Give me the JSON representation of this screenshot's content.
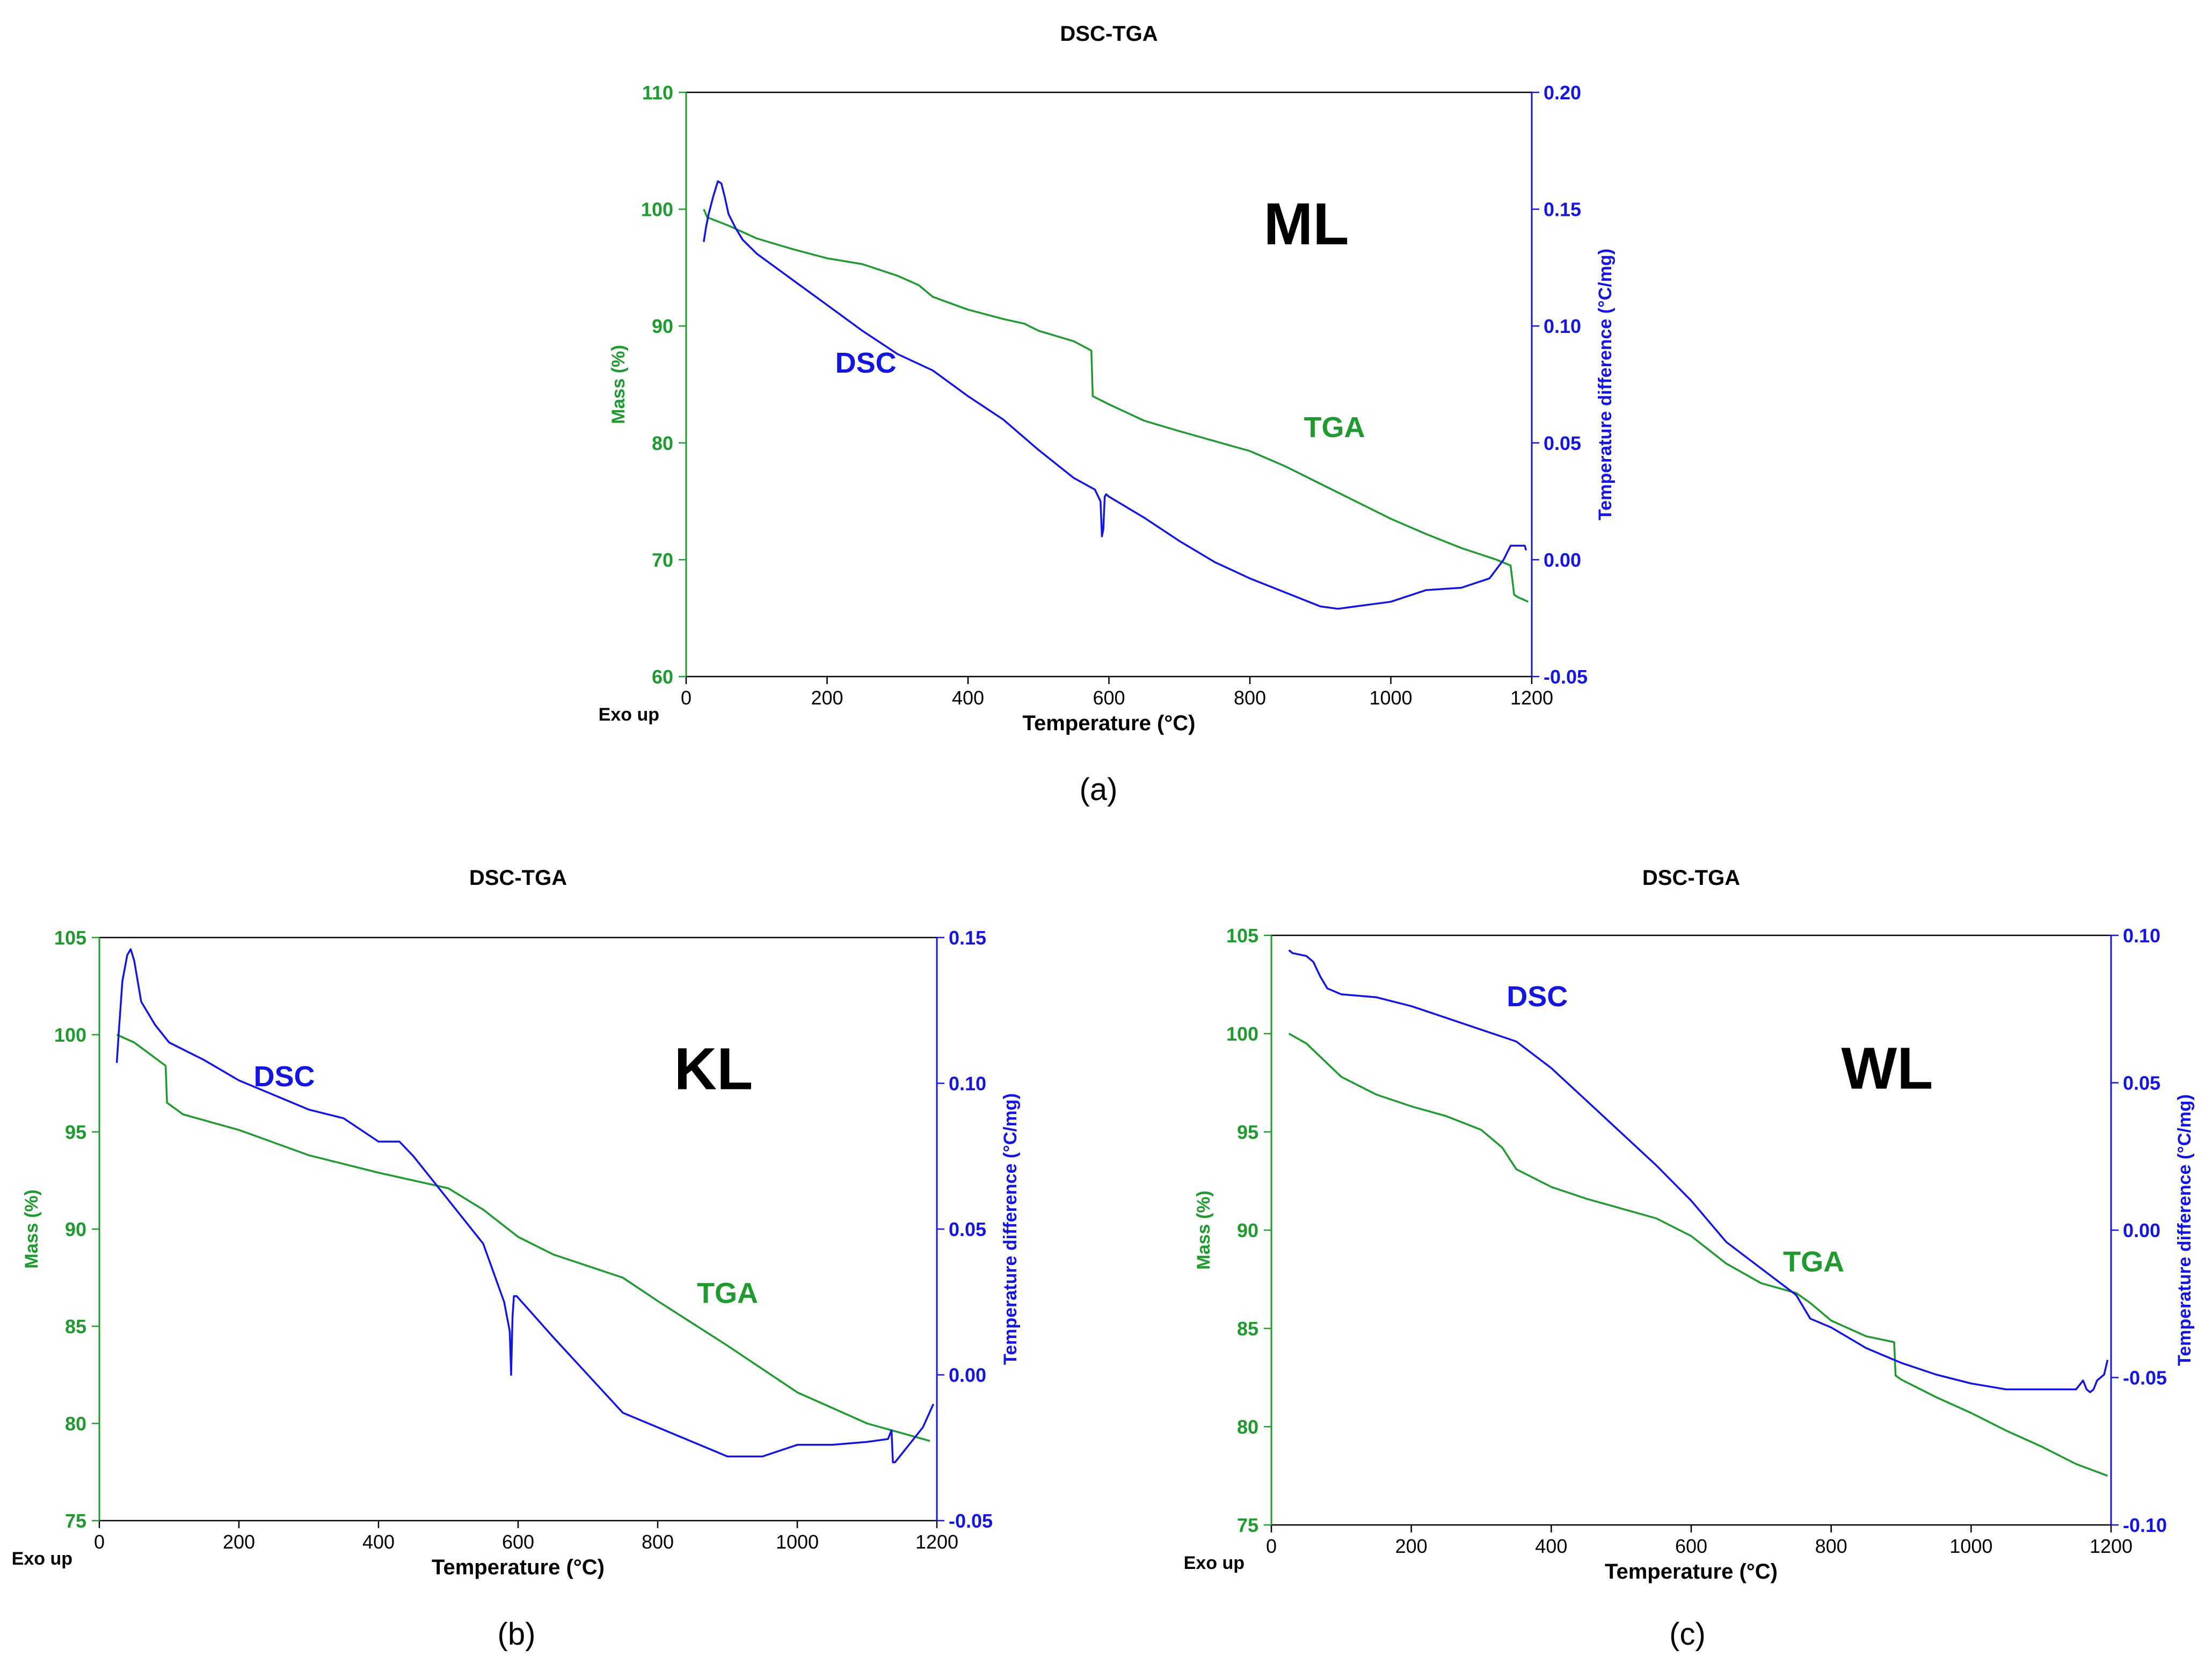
{
  "figure": {
    "caption_a": "(a)",
    "caption_b": "(b)",
    "caption_c": "(c)"
  },
  "colors": {
    "tga": "#1f9a2e",
    "dsc": "#1515e0",
    "axis": "#000000"
  },
  "chart_data": [
    {
      "id": "a",
      "type": "line",
      "title": "DSC-TGA",
      "sample_label": "ML",
      "xlabel": "Temperature (°C)",
      "ylabel_left": "Mass (%)",
      "ylabel_right": "Temperature difference (°C/mg)",
      "corner_label": "Exo up",
      "xlim": [
        0,
        1200
      ],
      "ylim_left": [
        60,
        110
      ],
      "ylim_right": [
        -0.05,
        0.2
      ],
      "x_ticks": [
        "0",
        "200",
        "400",
        "600",
        "800",
        "1000",
        "1200"
      ],
      "left_ticks": [
        "60",
        "70",
        "80",
        "90",
        "100",
        "110"
      ],
      "right_ticks": [
        "-0.05",
        "0.00",
        "0.05",
        "0.10",
        "0.15",
        "0.20"
      ],
      "series": [
        {
          "name": "TGA",
          "axis": "left",
          "label_x": 920,
          "label_y": 80.5,
          "x": [
            25,
            30,
            60,
            100,
            150,
            200,
            250,
            300,
            330,
            350,
            400,
            450,
            480,
            500,
            550,
            575,
            577,
            600,
            650,
            700,
            800,
            850,
            900,
            950,
            1000,
            1050,
            1100,
            1150,
            1170,
            1175,
            1180,
            1195
          ],
          "y": [
            100,
            99.3,
            98.6,
            97.5,
            96.6,
            95.8,
            95.3,
            94.3,
            93.5,
            92.5,
            91.4,
            90.6,
            90.2,
            89.6,
            88.7,
            87.9,
            84.0,
            83.3,
            81.9,
            81.0,
            79.3,
            78.0,
            76.5,
            75.0,
            73.5,
            72.2,
            71.0,
            70.0,
            69.5,
            67.0,
            66.8,
            66.4
          ]
        },
        {
          "name": "DSC",
          "axis": "right",
          "label_x": 255,
          "label_y": 0.08,
          "x": [
            25,
            28,
            32,
            38,
            45,
            50,
            55,
            60,
            70,
            80,
            100,
            150,
            200,
            250,
            300,
            350,
            400,
            450,
            500,
            550,
            580,
            588,
            590,
            592,
            594,
            596,
            600,
            650,
            700,
            750,
            800,
            850,
            900,
            925,
            950,
            1000,
            1050,
            1100,
            1140,
            1160,
            1170,
            1180,
            1190,
            1192
          ],
          "y": [
            0.136,
            0.142,
            0.148,
            0.155,
            0.162,
            0.161,
            0.155,
            0.148,
            0.142,
            0.137,
            0.131,
            0.12,
            0.109,
            0.098,
            0.088,
            0.081,
            0.07,
            0.06,
            0.047,
            0.035,
            0.03,
            0.025,
            0.01,
            0.013,
            0.027,
            0.028,
            0.027,
            0.018,
            0.008,
            -0.001,
            -0.008,
            -0.014,
            -0.02,
            -0.021,
            -0.02,
            -0.018,
            -0.013,
            -0.012,
            -0.008,
            0.0,
            0.006,
            0.006,
            0.006,
            0.004
          ]
        }
      ]
    },
    {
      "id": "b",
      "type": "line",
      "title": "DSC-TGA",
      "sample_label": "KL",
      "xlabel": "Temperature (°C)",
      "ylabel_left": "Mass (%)",
      "ylabel_right": "Temperature difference (°C/mg)",
      "corner_label": "Exo up",
      "xlim": [
        0,
        1200
      ],
      "ylim_left": [
        75,
        105
      ],
      "ylim_right": [
        -0.05,
        0.15
      ],
      "x_ticks": [
        "0",
        "200",
        "400",
        "600",
        "800",
        "1000",
        "1200"
      ],
      "left_ticks": [
        "75",
        "80",
        "85",
        "90",
        "95",
        "100",
        "105"
      ],
      "right_ticks": [
        "-0.05",
        "0.00",
        "0.05",
        "0.10",
        "0.15"
      ],
      "series": [
        {
          "name": "TGA",
          "axis": "left",
          "label_x": 900,
          "label_y": 86.2,
          "x": [
            25,
            50,
            80,
            95,
            97,
            120,
            200,
            300,
            400,
            500,
            550,
            600,
            650,
            700,
            750,
            800,
            900,
            1000,
            1100,
            1190
          ],
          "y": [
            100,
            99.6,
            98.8,
            98.4,
            96.5,
            95.9,
            95.1,
            93.8,
            92.9,
            92.1,
            91.0,
            89.6,
            88.7,
            88.1,
            87.5,
            86.3,
            84.0,
            81.6,
            80.0,
            79.1
          ]
        },
        {
          "name": "DSC",
          "axis": "right",
          "label_x": 265,
          "label_y": 0.099,
          "x": [
            25,
            28,
            33,
            40,
            45,
            50,
            60,
            80,
            100,
            150,
            200,
            250,
            300,
            350,
            400,
            430,
            450,
            500,
            550,
            580,
            588,
            590,
            592,
            594,
            598,
            650,
            700,
            750,
            800,
            850,
            900,
            950,
            1000,
            1050,
            1100,
            1130,
            1135,
            1137,
            1140,
            1150,
            1160,
            1180,
            1195
          ],
          "y": [
            0.107,
            0.118,
            0.135,
            0.144,
            0.146,
            0.142,
            0.128,
            0.12,
            0.114,
            0.108,
            0.101,
            0.096,
            0.091,
            0.088,
            0.08,
            0.08,
            0.075,
            0.06,
            0.045,
            0.025,
            0.015,
            0.0,
            0.02,
            0.027,
            0.027,
            0.013,
            0.0,
            -0.013,
            -0.018,
            -0.023,
            -0.028,
            -0.028,
            -0.024,
            -0.024,
            -0.023,
            -0.022,
            -0.019,
            -0.03,
            -0.03,
            -0.027,
            -0.024,
            -0.018,
            -0.01
          ]
        }
      ]
    },
    {
      "id": "c",
      "type": "line",
      "title": "DSC-TGA",
      "sample_label": "WL",
      "xlabel": "Temperature (°C)",
      "ylabel_left": "Mass (%)",
      "ylabel_right": "Temperature difference (°C/mg)",
      "corner_label": "Exo up",
      "xlim": [
        0,
        1200
      ],
      "ylim_left": [
        75,
        105
      ],
      "ylim_right": [
        -0.1,
        0.1
      ],
      "x_ticks": [
        "0",
        "200",
        "400",
        "600",
        "800",
        "1000",
        "1200"
      ],
      "left_ticks": [
        "75",
        "80",
        "85",
        "90",
        "95",
        "100",
        "105"
      ],
      "right_ticks": [
        "-0.10",
        "-0.05",
        "0.00",
        "0.05",
        "0.10"
      ],
      "series": [
        {
          "name": "TGA",
          "axis": "left",
          "label_x": 775,
          "label_y": 87.9,
          "x": [
            25,
            50,
            100,
            150,
            200,
            250,
            300,
            330,
            350,
            400,
            450,
            500,
            550,
            600,
            650,
            700,
            750,
            770,
            800,
            850,
            890,
            892,
            900,
            950,
            1000,
            1050,
            1100,
            1150,
            1195
          ],
          "y": [
            100,
            99.5,
            97.8,
            96.9,
            96.3,
            95.8,
            95.1,
            94.2,
            93.1,
            92.2,
            91.6,
            91.1,
            90.6,
            89.7,
            88.3,
            87.3,
            86.8,
            86.3,
            85.4,
            84.6,
            84.3,
            82.6,
            82.4,
            81.5,
            80.7,
            79.8,
            79.0,
            78.1,
            77.5
          ]
        },
        {
          "name": "DSC",
          "axis": "right",
          "label_x": 380,
          "label_y": 0.076,
          "x": [
            25,
            30,
            50,
            60,
            70,
            80,
            100,
            150,
            200,
            250,
            300,
            350,
            400,
            450,
            500,
            550,
            600,
            650,
            700,
            750,
            765,
            770,
            780,
            800,
            850,
            900,
            950,
            1000,
            1050,
            1100,
            1150,
            1160,
            1165,
            1170,
            1175,
            1180,
            1190,
            1195
          ],
          "y": [
            0.095,
            0.094,
            0.093,
            0.091,
            0.086,
            0.082,
            0.08,
            0.079,
            0.076,
            0.072,
            0.068,
            0.064,
            0.055,
            0.044,
            0.033,
            0.022,
            0.01,
            -0.004,
            -0.013,
            -0.022,
            -0.028,
            -0.03,
            -0.031,
            -0.033,
            -0.04,
            -0.045,
            -0.049,
            -0.052,
            -0.054,
            -0.054,
            -0.054,
            -0.051,
            -0.054,
            -0.055,
            -0.054,
            -0.051,
            -0.049,
            -0.044
          ]
        }
      ]
    }
  ]
}
